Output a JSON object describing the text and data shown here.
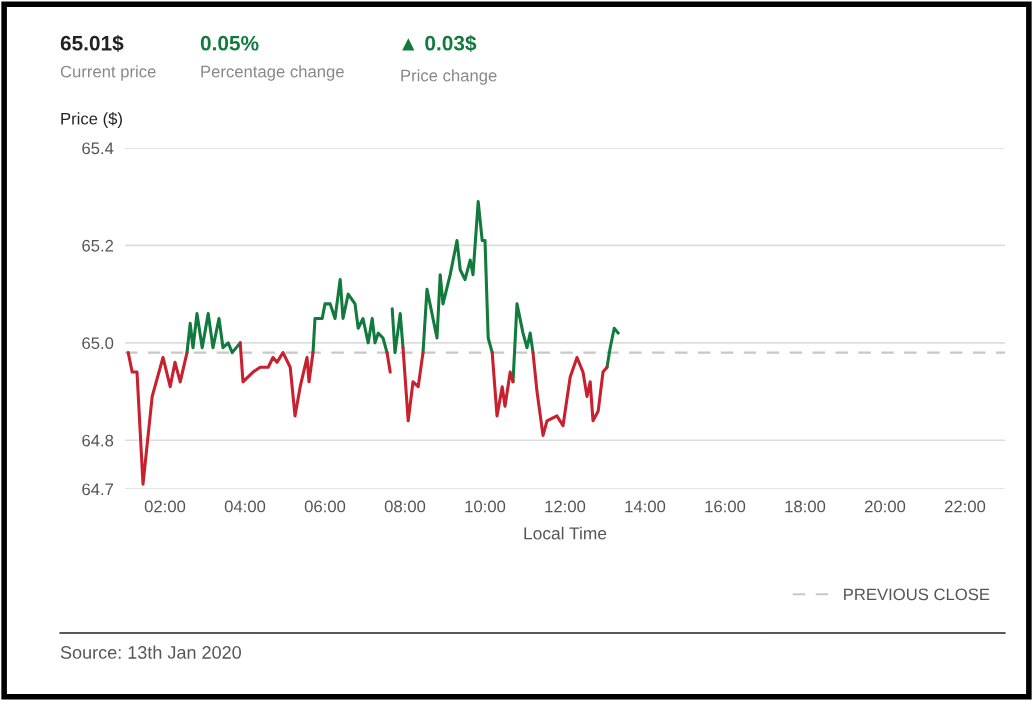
{
  "chart_data": {
    "type": "line",
    "ylabel": "Price ($)",
    "xlabel": "Local Time",
    "annotations": [
      "65.01$",
      "Current price",
      "0.05%",
      "Percentage change",
      "▲ 0.03$",
      "Price change",
      "Source: 13th Jan 2020"
    ],
    "x": [
      1.08,
      1.18,
      1.3,
      1.45,
      1.68,
      1.95,
      2.13,
      2.25,
      2.38,
      2.55,
      2.63,
      2.7,
      2.8,
      2.93,
      3.08,
      3.2,
      3.35,
      3.45,
      3.58,
      3.68,
      3.88,
      3.95,
      4.2,
      4.38,
      4.58,
      4.7,
      4.8,
      4.95,
      5.13,
      5.25,
      5.38,
      5.55,
      5.6,
      5.7,
      5.75,
      5.93,
      6.0,
      6.13,
      6.25,
      6.38,
      6.45,
      6.58,
      6.75,
      6.83,
      6.95,
      7.08,
      7.18,
      7.25,
      7.33,
      7.45,
      7.55,
      7.63,
      7.68,
      7.75,
      7.88,
      7.95,
      8.08,
      8.2,
      8.33,
      8.45,
      8.55,
      8.8,
      8.88,
      8.95,
      9.13,
      9.3,
      9.38,
      9.5,
      9.63,
      9.7,
      9.83,
      9.93,
      10.0,
      10.08,
      10.18,
      10.3,
      10.43,
      10.5,
      10.63,
      10.7,
      10.8,
      10.95,
      11.05,
      11.13,
      11.2,
      11.3,
      11.45,
      11.55,
      11.8,
      11.95,
      12.13,
      12.3,
      12.45,
      12.55,
      12.63,
      12.7,
      12.83,
      12.95,
      13.05,
      13.13,
      13.23,
      13.33
    ],
    "series": [
      {
        "color": "#117a3c",
        "values": [
          null,
          null,
          null,
          null,
          null,
          null,
          null,
          null,
          null,
          64.98,
          65.04,
          64.99,
          65.06,
          64.99,
          65.06,
          64.99,
          65.05,
          64.99,
          65.0,
          64.98,
          65.0,
          null,
          null,
          null,
          null,
          null,
          null,
          null,
          null,
          null,
          null,
          null,
          null,
          64.98,
          65.05,
          65.05,
          65.08,
          65.08,
          65.05,
          65.13,
          65.05,
          65.1,
          65.08,
          65.03,
          65.05,
          65.0,
          65.05,
          65.0,
          65.02,
          65.01,
          64.98,
          null,
          65.07,
          64.98,
          65.06,
          64.99,
          null,
          null,
          null,
          64.98,
          65.11,
          65.01,
          65.14,
          65.08,
          65.14,
          65.21,
          65.15,
          65.13,
          65.17,
          65.14,
          65.29,
          65.21,
          65.21,
          65.01,
          64.98,
          null,
          null,
          null,
          null,
          64.92,
          65.08,
          65.02,
          64.99,
          65.02,
          64.98,
          null,
          null,
          null,
          null,
          null,
          null,
          null,
          null,
          null,
          null,
          null,
          null,
          null,
          64.95,
          64.99,
          65.03,
          65.02
        ]
      },
      {
        "color": "#c8202e",
        "values": [
          64.98,
          64.94,
          64.94,
          64.71,
          64.89,
          64.97,
          64.91,
          64.96,
          64.92,
          64.98,
          null,
          null,
          null,
          null,
          null,
          null,
          null,
          null,
          null,
          null,
          65.0,
          64.92,
          64.94,
          64.95,
          64.95,
          64.97,
          64.96,
          64.98,
          64.95,
          64.85,
          64.91,
          64.97,
          64.92,
          64.98,
          null,
          null,
          null,
          null,
          null,
          null,
          null,
          null,
          null,
          null,
          null,
          null,
          null,
          null,
          null,
          null,
          64.98,
          64.94,
          null,
          null,
          null,
          64.99,
          64.84,
          64.92,
          64.91,
          64.98,
          null,
          null,
          null,
          null,
          null,
          null,
          null,
          null,
          null,
          null,
          null,
          null,
          null,
          null,
          64.98,
          64.85,
          64.91,
          64.87,
          64.94,
          64.92,
          null,
          null,
          null,
          null,
          64.98,
          64.9,
          64.81,
          64.84,
          64.85,
          64.83,
          64.93,
          64.97,
          64.94,
          64.89,
          64.92,
          64.84,
          64.86,
          64.94,
          64.95,
          null,
          null,
          null
        ]
      }
    ],
    "xlim": [
      1.0,
      23.0
    ],
    "xticks": [
      {
        "value": 2,
        "label": "02:00"
      },
      {
        "value": 4,
        "label": "04:00"
      },
      {
        "value": 6,
        "label": "06:00"
      },
      {
        "value": 8,
        "label": "08:00"
      },
      {
        "value": 10,
        "label": "10:00"
      },
      {
        "value": 12,
        "label": "12:00"
      },
      {
        "value": 14,
        "label": "14:00"
      },
      {
        "value": 16,
        "label": "16:00"
      },
      {
        "value": 18,
        "label": "18:00"
      },
      {
        "value": 20,
        "label": "20:00"
      },
      {
        "value": 22,
        "label": "22:00"
      }
    ],
    "ylim": [
      64.7,
      65.4
    ],
    "yticks": [
      64.7,
      64.8,
      {
        "value": 65.0,
        "label": "65.0"
      },
      65.2,
      65.4
    ],
    "ref_lines": [
      {
        "axis": "y",
        "value": 64.98,
        "label": "PREVIOUS CLOSE",
        "color": "#c8c8c8",
        "line_style": "dashed"
      }
    ],
    "grid": "y",
    "legend": "bottom right"
  }
}
